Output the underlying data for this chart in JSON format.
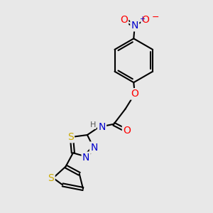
{
  "bg_color": "#e8e8e8",
  "bond_color": "#000000",
  "bond_width": 1.5,
  "atom_colors": {
    "N": "#0000cc",
    "O": "#ff0000",
    "S": "#ccaa00",
    "C": "#000000",
    "H": "#555555"
  },
  "font_size_atom": 10,
  "font_size_charge": 7,
  "xlim": [
    0,
    10
  ],
  "ylim": [
    0,
    10
  ]
}
